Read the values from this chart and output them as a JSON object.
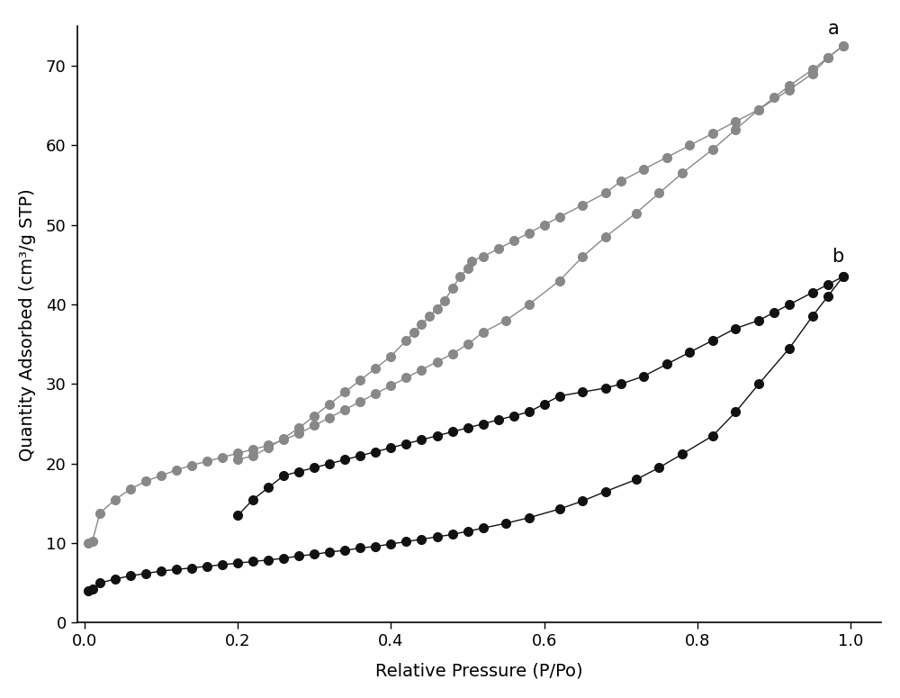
{
  "title": "",
  "xlabel": "Relative Pressure (P/Po)",
  "ylabel": "Quantity Adsorbed (cm³/g STP)",
  "xlim": [
    -0.01,
    1.04
  ],
  "ylim": [
    0,
    75
  ],
  "yticks": [
    0,
    10,
    20,
    30,
    40,
    50,
    60,
    70
  ],
  "xticks": [
    0.0,
    0.2,
    0.4,
    0.6,
    0.8,
    1.0
  ],
  "label_a": "a",
  "label_b": "b",
  "color_a": "#888888",
  "color_b": "#111111",
  "marker_size": 7,
  "line_width": 1.0,
  "curve_a_adsorption_x": [
    0.005,
    0.01,
    0.02,
    0.04,
    0.06,
    0.08,
    0.1,
    0.12,
    0.14,
    0.16,
    0.18,
    0.2,
    0.22,
    0.24,
    0.26,
    0.28,
    0.3,
    0.32,
    0.34,
    0.36,
    0.38,
    0.4,
    0.42,
    0.44,
    0.46,
    0.48,
    0.5,
    0.52,
    0.55,
    0.58,
    0.62,
    0.65,
    0.68,
    0.72,
    0.75,
    0.78,
    0.82,
    0.85,
    0.88,
    0.92,
    0.95,
    0.97,
    0.99
  ],
  "curve_a_adsorption_y": [
    10.0,
    10.2,
    13.8,
    15.5,
    16.8,
    17.8,
    18.5,
    19.2,
    19.8,
    20.3,
    20.8,
    21.3,
    21.8,
    22.3,
    23.0,
    23.8,
    24.8,
    25.8,
    26.8,
    27.8,
    28.8,
    29.8,
    30.8,
    31.8,
    32.8,
    33.8,
    35.0,
    36.5,
    38.0,
    40.0,
    43.0,
    46.0,
    48.5,
    51.5,
    54.0,
    56.5,
    59.5,
    62.0,
    64.5,
    67.0,
    69.0,
    71.0,
    72.5
  ],
  "curve_a_desorption_x": [
    0.99,
    0.97,
    0.95,
    0.92,
    0.9,
    0.88,
    0.85,
    0.82,
    0.79,
    0.76,
    0.73,
    0.7,
    0.68,
    0.65,
    0.62,
    0.6,
    0.58,
    0.56,
    0.54,
    0.52,
    0.505,
    0.5,
    0.49,
    0.48,
    0.47,
    0.46,
    0.45,
    0.44,
    0.43,
    0.42,
    0.4,
    0.38,
    0.36,
    0.34,
    0.32,
    0.3,
    0.28,
    0.26,
    0.24,
    0.22,
    0.2
  ],
  "curve_a_desorption_y": [
    72.5,
    71.0,
    69.5,
    67.5,
    66.0,
    64.5,
    63.0,
    61.5,
    60.0,
    58.5,
    57.0,
    55.5,
    54.0,
    52.5,
    51.0,
    50.0,
    49.0,
    48.0,
    47.0,
    46.0,
    45.5,
    44.5,
    43.5,
    42.0,
    40.5,
    39.5,
    38.5,
    37.5,
    36.5,
    35.5,
    33.5,
    32.0,
    30.5,
    29.0,
    27.5,
    26.0,
    24.5,
    23.2,
    22.0,
    21.0,
    20.5
  ],
  "curve_b_adsorption_x": [
    0.005,
    0.01,
    0.02,
    0.04,
    0.06,
    0.08,
    0.1,
    0.12,
    0.14,
    0.16,
    0.18,
    0.2,
    0.22,
    0.24,
    0.26,
    0.28,
    0.3,
    0.32,
    0.34,
    0.36,
    0.38,
    0.4,
    0.42,
    0.44,
    0.46,
    0.48,
    0.5,
    0.52,
    0.55,
    0.58,
    0.62,
    0.65,
    0.68,
    0.72,
    0.75,
    0.78,
    0.82,
    0.85,
    0.88,
    0.92,
    0.95,
    0.97,
    0.99
  ],
  "curve_b_adsorption_y": [
    4.0,
    4.2,
    5.0,
    5.5,
    5.9,
    6.2,
    6.5,
    6.7,
    6.9,
    7.1,
    7.3,
    7.5,
    7.7,
    7.9,
    8.1,
    8.4,
    8.6,
    8.9,
    9.1,
    9.4,
    9.6,
    9.9,
    10.2,
    10.5,
    10.8,
    11.1,
    11.5,
    11.9,
    12.5,
    13.2,
    14.3,
    15.3,
    16.5,
    18.0,
    19.5,
    21.2,
    23.5,
    26.5,
    30.0,
    34.5,
    38.5,
    41.0,
    43.5
  ],
  "curve_b_desorption_x": [
    0.99,
    0.97,
    0.95,
    0.92,
    0.9,
    0.88,
    0.85,
    0.82,
    0.79,
    0.76,
    0.73,
    0.7,
    0.68,
    0.65,
    0.62,
    0.6,
    0.58,
    0.56,
    0.54,
    0.52,
    0.5,
    0.48,
    0.46,
    0.44,
    0.42,
    0.4,
    0.38,
    0.36,
    0.34,
    0.32,
    0.3,
    0.28,
    0.26,
    0.24,
    0.22,
    0.2
  ],
  "curve_b_desorption_y": [
    43.5,
    42.5,
    41.5,
    40.0,
    39.0,
    38.0,
    37.0,
    35.5,
    34.0,
    32.5,
    31.0,
    30.0,
    29.5,
    29.0,
    28.5,
    27.5,
    26.5,
    26.0,
    25.5,
    25.0,
    24.5,
    24.0,
    23.5,
    23.0,
    22.5,
    22.0,
    21.5,
    21.0,
    20.5,
    20.0,
    19.5,
    19.0,
    18.5,
    17.0,
    15.5,
    13.5
  ]
}
